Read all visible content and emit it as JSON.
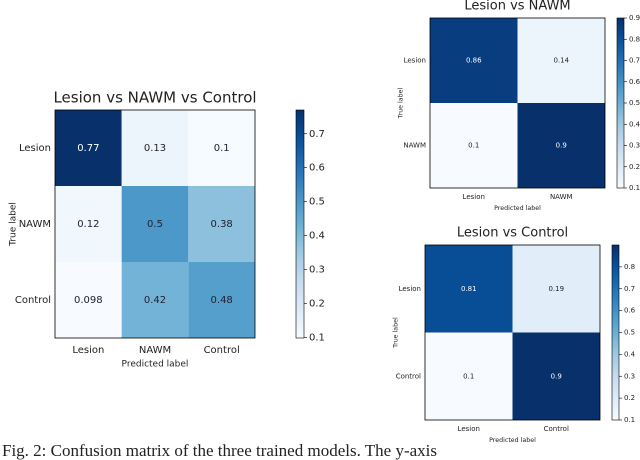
{
  "chart_data": [
    {
      "type": "heatmap",
      "title": "Lesion vs NAWM vs Control",
      "xlabel": "Predicted label",
      "ylabel": "True label",
      "x": [
        "Lesion",
        "NAWM",
        "Control"
      ],
      "y": [
        "Lesion",
        "NAWM",
        "Control"
      ],
      "values": [
        [
          0.77,
          0.13,
          0.1
        ],
        [
          0.12,
          0.5,
          0.38
        ],
        [
          0.098,
          0.42,
          0.48
        ]
      ],
      "cmap": "Blues",
      "clim": [
        0.098,
        0.77
      ],
      "cticks": [
        0.1,
        0.2,
        0.3,
        0.4,
        0.5,
        0.6,
        0.7
      ]
    },
    {
      "type": "heatmap",
      "title": "Lesion vs NAWM",
      "xlabel": "Predicted label",
      "ylabel": "True label",
      "x": [
        "Lesion",
        "NAWM"
      ],
      "y": [
        "Lesion",
        "NAWM"
      ],
      "values": [
        [
          0.86,
          0.14
        ],
        [
          0.1,
          0.9
        ]
      ],
      "cmap": "Blues",
      "clim": [
        0.1,
        0.9
      ],
      "cticks": [
        0.1,
        0.2,
        0.3,
        0.4,
        0.5,
        0.6,
        0.7,
        0.8,
        0.9
      ]
    },
    {
      "type": "heatmap",
      "title": "Lesion vs Control",
      "xlabel": "Predicted label",
      "ylabel": "True label",
      "x": [
        "Lesion",
        "Control"
      ],
      "y": [
        "Lesion",
        "Control"
      ],
      "values": [
        [
          0.81,
          0.19
        ],
        [
          0.1,
          0.9
        ]
      ],
      "cmap": "Blues",
      "clim": [
        0.1,
        0.9
      ],
      "cticks": [
        0.1,
        0.2,
        0.3,
        0.4,
        0.5,
        0.6,
        0.7,
        0.8
      ]
    }
  ],
  "caption": "Fig. 2: Confusion matrix of the three trained models. The y-axis"
}
